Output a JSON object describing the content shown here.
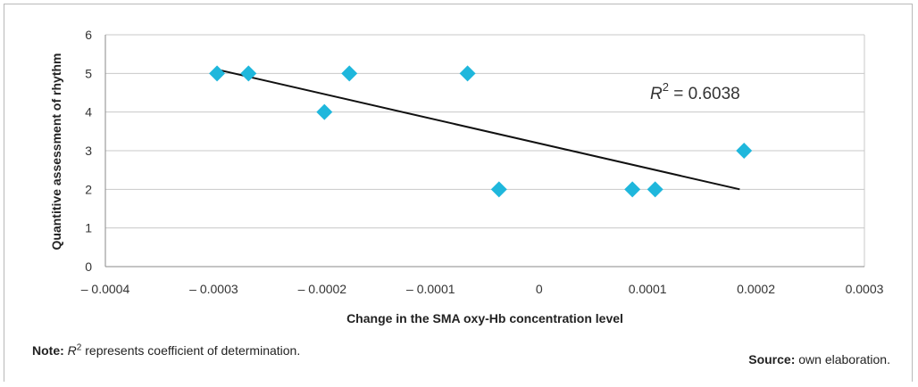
{
  "chart_data": {
    "type": "scatter",
    "xlabel": "Change in the SMA oxy-Hb concentration level",
    "ylabel": "Quantitive assessment of rhythm",
    "xlim": [
      -0.0004,
      0.0003
    ],
    "ylim": [
      0,
      6
    ],
    "x_ticks": [
      -0.0004,
      -0.0003,
      -0.0002,
      -0.0001,
      0,
      0.0001,
      0.0002,
      0.0003
    ],
    "x_tick_labels": [
      "– 0.0004",
      "– 0.0003",
      "– 0.0002",
      "– 0.0001",
      "0",
      "0.0001",
      "0.0002",
      "0.0003"
    ],
    "y_ticks": [
      0,
      1,
      2,
      3,
      4,
      5,
      6
    ],
    "y_tick_labels": [
      "0",
      "1",
      "2",
      "3",
      "4",
      "5",
      "6"
    ],
    "grid": "horizontal",
    "marker": "diamond",
    "marker_color": "#1fb7dc",
    "trendline_color": "#111111",
    "points": [
      {
        "x": -0.000297,
        "y": 5
      },
      {
        "x": -0.000268,
        "y": 5
      },
      {
        "x": -0.000198,
        "y": 4
      },
      {
        "x": -0.000175,
        "y": 5
      },
      {
        "x": -6.6e-05,
        "y": 5
      },
      {
        "x": -3.7e-05,
        "y": 2
      },
      {
        "x": 8.6e-05,
        "y": 2
      },
      {
        "x": 0.000107,
        "y": 2
      },
      {
        "x": 0.000189,
        "y": 3
      }
    ],
    "trendline": {
      "x": [
        -0.000297,
        0.000185
      ],
      "y": [
        5.1,
        2.0
      ]
    },
    "annotation": {
      "symbol": "R",
      "sup": "2",
      "text": " = 0.6038"
    }
  },
  "footer": {
    "note_label": "Note:",
    "note_symbol": "R",
    "note_sup": "2",
    "note_text": " represents coefficient of determination.",
    "source_label": "Source:",
    "source_text": " own elaboration."
  }
}
